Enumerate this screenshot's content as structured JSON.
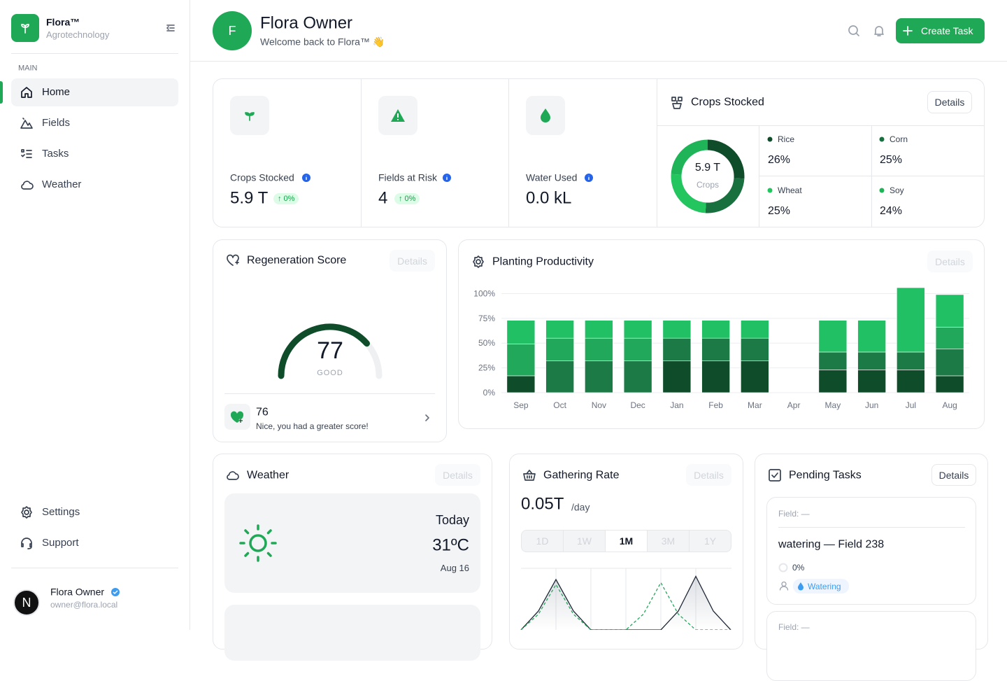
{
  "sidebar": {
    "brand": "Flora™",
    "tagline": "Agrotechnology",
    "section": "MAIN",
    "nav": [
      "Home",
      "Fields",
      "Tasks",
      "Weather"
    ],
    "footer_nav": [
      "Settings",
      "Support"
    ],
    "user": {
      "initial": "N",
      "name": "Flora Owner",
      "email": "owner@flora.local"
    }
  },
  "header": {
    "initial": "F",
    "title": "Flora Owner",
    "subtitle": "Welcome back to Flora™ 👋",
    "button": "Create Task"
  },
  "stats": [
    {
      "label": "Crops Stocked",
      "value": "5.9 T",
      "change": "↑ 0%"
    },
    {
      "label": "Fields at Risk",
      "value": "4",
      "change": "↑ 0%"
    },
    {
      "label": "Water Used",
      "value": "0.0 kL"
    }
  ],
  "crops_card": {
    "title": "Crops Stocked",
    "button": "Details"
  },
  "regeneration_card": {
    "title": "Regeneration Score",
    "button": "Details",
    "previous_score": "76",
    "message": "Nice, you had a greater score!"
  },
  "productivity_card": {
    "title": "Planting Productivity",
    "button": "Details"
  },
  "weather_card": {
    "title": "Weather",
    "button": "Details",
    "day": "Today",
    "temperature": "31ºC",
    "date": "Aug 16"
  },
  "gathering_card": {
    "title": "Gathering Rate",
    "button": "Details",
    "value": "0.05T",
    "unit": "/day",
    "ranges": [
      "1D",
      "1W",
      "1M",
      "3M",
      "1Y"
    ],
    "active_range": 2
  },
  "tasks_card": {
    "title": "Pending Tasks",
    "button": "Details",
    "tasks": [
      {
        "field": "Field: —",
        "title": "watering — Field 238",
        "progress": "0%",
        "tag": "Watering"
      },
      {
        "field": "Field: —"
      }
    ]
  },
  "chart_data": [
    {
      "type": "pie",
      "center_value": "5.9 T",
      "center_label": "Crops",
      "categories": [
        "Rice",
        "Corn",
        "Wheat",
        "Soy"
      ],
      "values": [
        26,
        25,
        25,
        24
      ],
      "value_labels": [
        "26%",
        "25%",
        "25%",
        "24%"
      ],
      "colors": [
        "#0f4d2a",
        "#17703d",
        "#22c55e",
        "#1fb457"
      ]
    },
    {
      "type": "gauge",
      "value": 77,
      "label": "GOOD",
      "ylim": [
        0,
        100
      ],
      "color": "#0f4d2a",
      "track_color": "#eef0f2"
    },
    {
      "type": "stacked_bar",
      "categories": [
        "Sep",
        "Oct",
        "Nov",
        "Dec",
        "Jan",
        "Feb",
        "Mar",
        "Apr",
        "May",
        "Jun",
        "Jul",
        "Aug"
      ],
      "series": [
        {
          "color": "#0f4d2a",
          "values": [
            17,
            0,
            0,
            0,
            32,
            32,
            32,
            0,
            23,
            23,
            23,
            17
          ]
        },
        {
          "color": "#1b7a45",
          "values": [
            0,
            32,
            32,
            32,
            23,
            23,
            23,
            0,
            18,
            18,
            18,
            27
          ]
        },
        {
          "color": "#22a85b",
          "values": [
            32,
            23,
            23,
            23,
            0,
            0,
            0,
            0,
            0,
            0,
            0,
            22
          ]
        },
        {
          "color": "#22c065",
          "values": [
            24,
            18,
            18,
            18,
            18,
            18,
            18,
            0,
            32,
            32,
            65,
            33
          ]
        }
      ],
      "ylim": [
        0,
        106
      ],
      "yticks": [
        {
          "value": 0,
          "label": "0%"
        },
        {
          "value": 25,
          "label": "25%"
        },
        {
          "value": 50,
          "label": "50%"
        },
        {
          "value": 75,
          "label": "75%"
        },
        {
          "value": 100,
          "label": "100%"
        }
      ],
      "grid": true
    },
    {
      "type": "line",
      "series": [
        {
          "color": "#1f2937",
          "dash": false,
          "values": [
            0,
            30,
            80,
            30,
            0,
            0,
            0,
            0,
            0,
            30,
            85,
            30,
            0
          ]
        },
        {
          "color": "#22a85b",
          "dash": true,
          "values": [
            0,
            25,
            72,
            25,
            0,
            0,
            0,
            25,
            75,
            25,
            0,
            0,
            0
          ]
        }
      ],
      "ylim": [
        0,
        100
      ]
    }
  ]
}
